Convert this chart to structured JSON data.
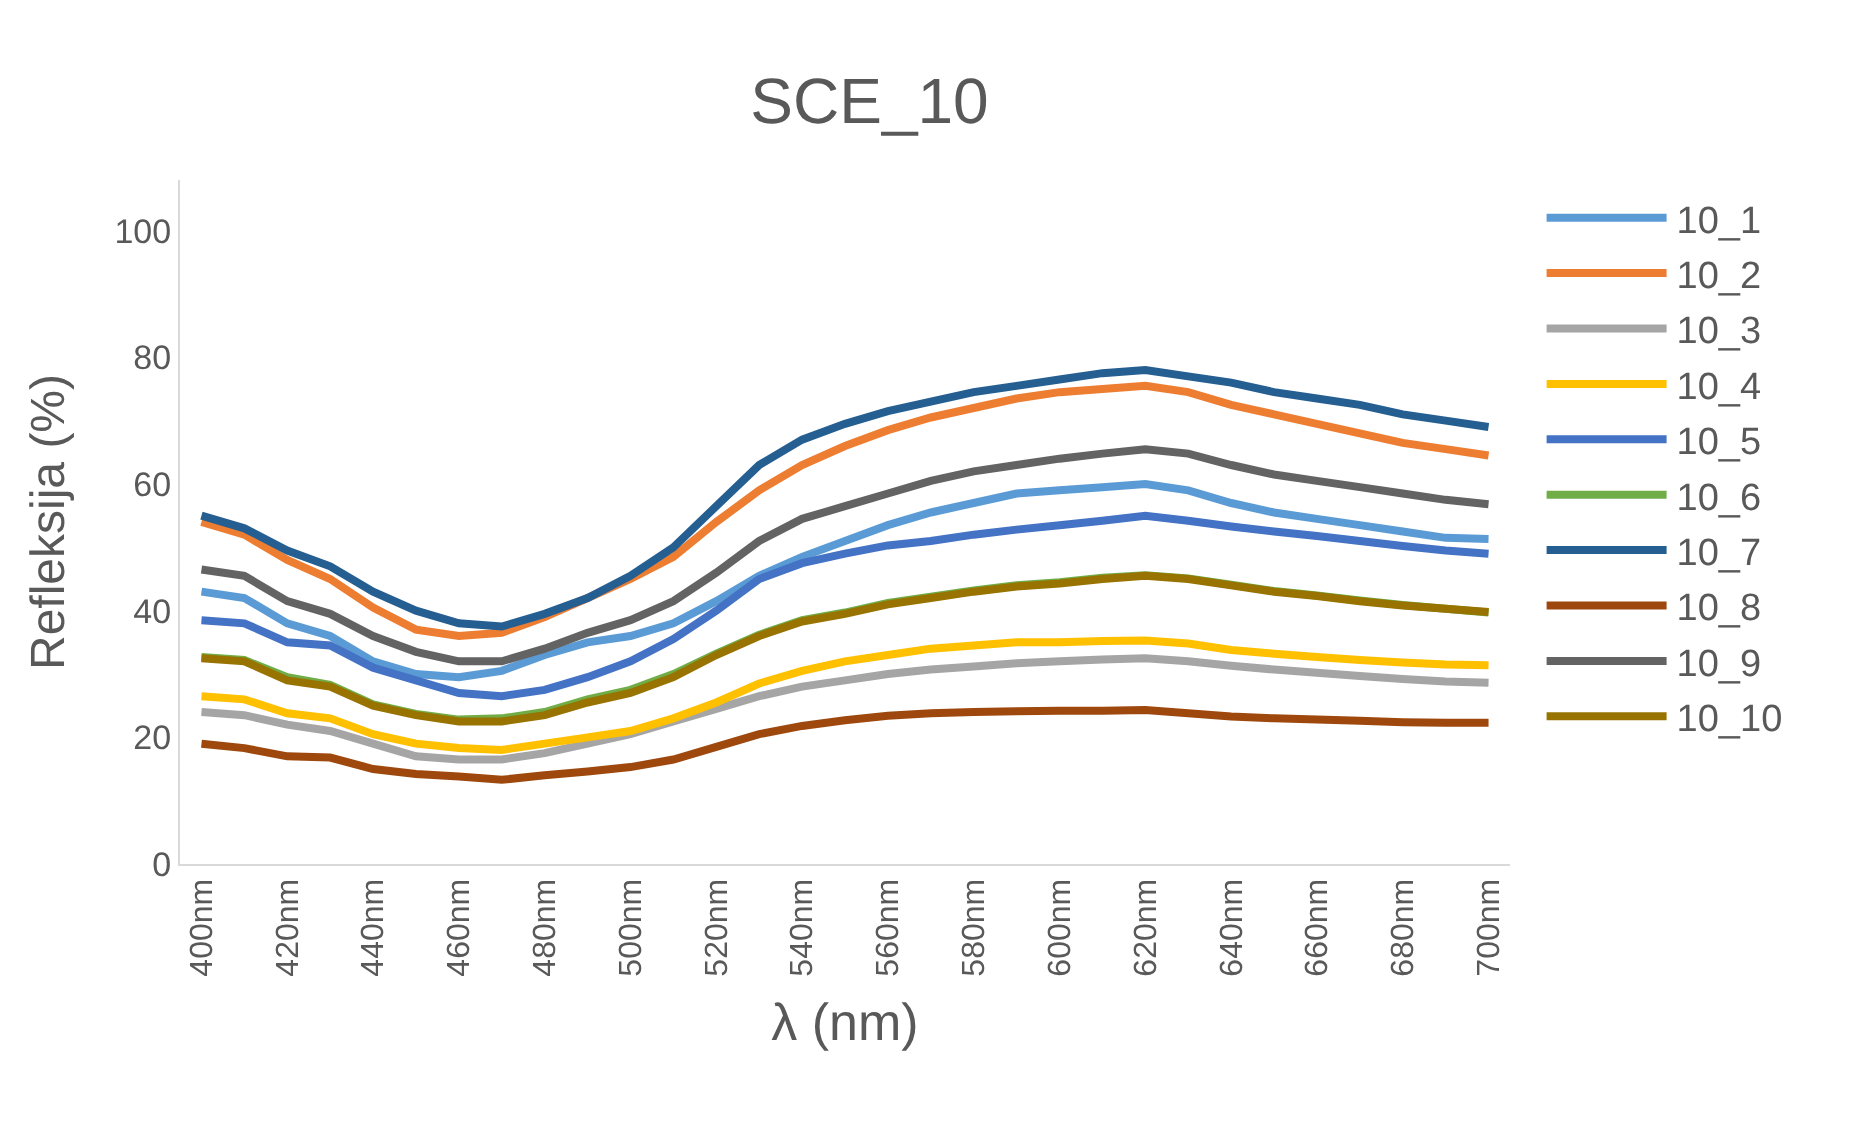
{
  "chart_data": {
    "type": "line",
    "title": "SCE_10",
    "xlabel": "λ (nm)",
    "ylabel": "Refleksija (%)",
    "categories": [
      "400nm",
      null,
      "420nm",
      null,
      "440nm",
      null,
      "460nm",
      null,
      "480nm",
      null,
      "500nm",
      null,
      "520nm",
      null,
      "540nm",
      null,
      "560nm",
      null,
      "580nm",
      null,
      "600nm",
      null,
      "620nm",
      null,
      "640nm",
      null,
      "660nm",
      null,
      "680nm",
      null,
      "700nm"
    ],
    "ylim": [
      0,
      108
    ],
    "yticks": [
      0,
      20,
      40,
      60,
      80,
      100
    ],
    "grid": false,
    "legend": "right",
    "marker": "none",
    "line_style": "solid",
    "series": [
      {
        "name": "10_1",
        "color": "#5b9bd5",
        "values": [
          43,
          42,
          38,
          36,
          32,
          30,
          29.5,
          30.5,
          33,
          35,
          36,
          38,
          41.5,
          45.5,
          48.5,
          51,
          53.5,
          55.5,
          57,
          58.5,
          59,
          59.5,
          60,
          59,
          57,
          55.5,
          54.5,
          53.5,
          52.5,
          51.5,
          51.3
        ]
      },
      {
        "name": "10_2",
        "color": "#ed7d31",
        "values": [
          54,
          52,
          48,
          45,
          40.5,
          37,
          36,
          36.5,
          39,
          42,
          45,
          48.5,
          54,
          59,
          63,
          66,
          68.5,
          70.5,
          72,
          73.5,
          74.5,
          75,
          75.5,
          74.5,
          72.5,
          71,
          69.5,
          68,
          66.5,
          65.5,
          64.5
        ]
      },
      {
        "name": "10_3",
        "color": "#a5a5a5",
        "values": [
          24,
          23.5,
          22,
          21,
          19,
          17,
          16.5,
          16.5,
          17.5,
          19,
          20.5,
          22.5,
          24.5,
          26.5,
          28,
          29,
          30,
          30.7,
          31.2,
          31.7,
          32,
          32.3,
          32.5,
          32,
          31.3,
          30.7,
          30.2,
          29.7,
          29.2,
          28.8,
          28.6
        ]
      },
      {
        "name": "10_4",
        "color": "#ffc000",
        "values": [
          26.5,
          26,
          23.8,
          23,
          20.5,
          19,
          18.3,
          18,
          19,
          20,
          21,
          23,
          25.5,
          28.5,
          30.5,
          32,
          33,
          34,
          34.5,
          35,
          35,
          35.2,
          35.3,
          34.8,
          33.8,
          33.2,
          32.7,
          32.2,
          31.8,
          31.5,
          31.4
        ]
      },
      {
        "name": "10_5",
        "color": "#4472c4",
        "values": [
          38.5,
          38,
          35,
          34.5,
          31,
          29,
          27,
          26.5,
          27.5,
          29.5,
          32,
          35.5,
          40,
          45,
          47.5,
          49,
          50.3,
          51,
          52,
          52.8,
          53.5,
          54.2,
          55,
          54.2,
          53.3,
          52.5,
          51.8,
          51,
          50.2,
          49.5,
          49
        ]
      },
      {
        "name": "10_6",
        "color": "#70ad47",
        "values": [
          32.7,
          32.2,
          29.5,
          28.3,
          25.2,
          23.7,
          22.8,
          23,
          24,
          26,
          27.5,
          30,
          33.2,
          36.2,
          38.5,
          39.7,
          41.2,
          42.2,
          43.2,
          44,
          44.5,
          45.2,
          45.6,
          45.1,
          44.1,
          43.1,
          42.4,
          41.6,
          40.9,
          40.3,
          39.7
        ]
      },
      {
        "name": "10_7",
        "color": "#255e91",
        "values": [
          55,
          53,
          49.5,
          47,
          43,
          40,
          38,
          37.5,
          39.5,
          42,
          45.5,
          50,
          56.5,
          63,
          67,
          69.5,
          71.5,
          73,
          74.5,
          75.5,
          76.5,
          77.5,
          78,
          77,
          76,
          74.5,
          73.5,
          72.5,
          71,
          70,
          69
        ]
      },
      {
        "name": "10_8",
        "color": "#9e480e",
        "values": [
          19,
          18.3,
          17,
          16.8,
          15,
          14.2,
          13.8,
          13.3,
          14,
          14.6,
          15.3,
          16.5,
          18.5,
          20.5,
          21.8,
          22.7,
          23.4,
          23.8,
          24,
          24.1,
          24.2,
          24.2,
          24.3,
          23.8,
          23.3,
          23,
          22.8,
          22.6,
          22.4,
          22.3,
          22.3
        ]
      },
      {
        "name": "10_9",
        "color": "#636363",
        "values": [
          46.5,
          45.5,
          41.5,
          39.5,
          36,
          33.5,
          32,
          32,
          34,
          36.5,
          38.5,
          41.5,
          46,
          51,
          54.5,
          56.5,
          58.5,
          60.5,
          62,
          63,
          64,
          64.8,
          65.5,
          64.8,
          63,
          61.5,
          60.5,
          59.5,
          58.5,
          57.5,
          56.8
        ]
      },
      {
        "name": "10_10",
        "color": "#997300",
        "values": [
          32.5,
          32,
          29,
          28,
          25,
          23.5,
          22.5,
          22.5,
          23.5,
          25.5,
          27,
          29.5,
          33,
          36,
          38.3,
          39.5,
          41,
          42,
          43,
          43.8,
          44.3,
          45,
          45.5,
          45,
          44,
          43,
          42.3,
          41.5,
          40.8,
          40.3,
          39.8
        ]
      }
    ]
  }
}
